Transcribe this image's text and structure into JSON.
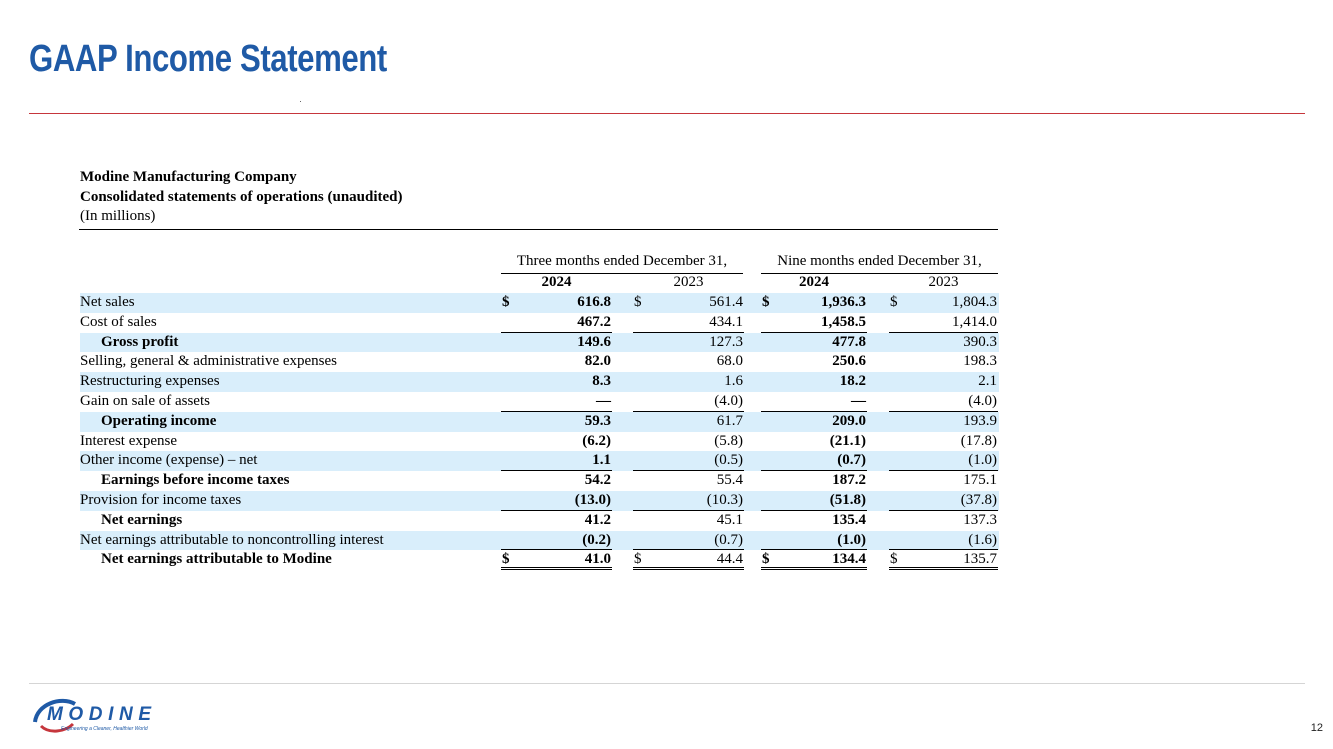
{
  "slide": {
    "title": "GAAP Income Statement",
    "page_number": "12"
  },
  "header": {
    "company": "Modine Manufacturing Company",
    "statement": "Consolidated statements of operations (unaudited)",
    "units": "(In millions)"
  },
  "periods": {
    "three_months": "Three months ended December 31,",
    "nine_months": "Nine months ended December 31,",
    "years": [
      "2024",
      "2023",
      "2024",
      "2023"
    ]
  },
  "rows": [
    {
      "label": "Net sales",
      "values": [
        "616.8",
        "561.4",
        "1,936.3",
        "1,804.3"
      ]
    },
    {
      "label": "Cost of sales",
      "values": [
        "467.2",
        "434.1",
        "1,458.5",
        "1,414.0"
      ]
    },
    {
      "label": "Gross profit",
      "values": [
        "149.6",
        "127.3",
        "477.8",
        "390.3"
      ]
    },
    {
      "label": "Selling, general & administrative expenses",
      "values": [
        "82.0",
        "68.0",
        "250.6",
        "198.3"
      ]
    },
    {
      "label": "Restructuring expenses",
      "values": [
        "8.3",
        "1.6",
        "18.2",
        "2.1"
      ]
    },
    {
      "label": "Gain on sale of assets",
      "values": [
        "—",
        "(4.0)",
        "—",
        "(4.0)"
      ]
    },
    {
      "label": "Operating income",
      "values": [
        "59.3",
        "61.7",
        "209.0",
        "193.9"
      ]
    },
    {
      "label": "Interest expense",
      "values": [
        "(6.2)",
        "(5.8)",
        "(21.1)",
        "(17.8)"
      ]
    },
    {
      "label": "Other income (expense) – net",
      "values": [
        "1.1",
        "(0.5)",
        "(0.7)",
        "(1.0)"
      ]
    },
    {
      "label": "Earnings before income taxes",
      "values": [
        "54.2",
        "55.4",
        "187.2",
        "175.1"
      ]
    },
    {
      "label": "Provision for income taxes",
      "values": [
        "(13.0)",
        "(10.3)",
        "(51.8)",
        "(37.8)"
      ]
    },
    {
      "label": "Net earnings",
      "values": [
        "41.2",
        "45.1",
        "135.4",
        "137.3"
      ]
    },
    {
      "label": "Net earnings attributable to noncontrolling interest",
      "values": [
        "(0.2)",
        "(0.7)",
        "(1.0)",
        "(1.6)"
      ]
    },
    {
      "label": "Net earnings attributable to Modine",
      "values": [
        "41.0",
        "44.4",
        "134.4",
        "135.7"
      ]
    }
  ],
  "currency_symbol": "$",
  "logo": {
    "name": "MODINE",
    "tagline": "Engineering a Cleaner, Healthier World",
    "colors": {
      "blue": "#1f5aa6",
      "red": "#c6363c"
    }
  },
  "colors": {
    "title": "#1f5aa6",
    "accent_rule": "#c6363c",
    "row_shading": "#d9eefb"
  }
}
